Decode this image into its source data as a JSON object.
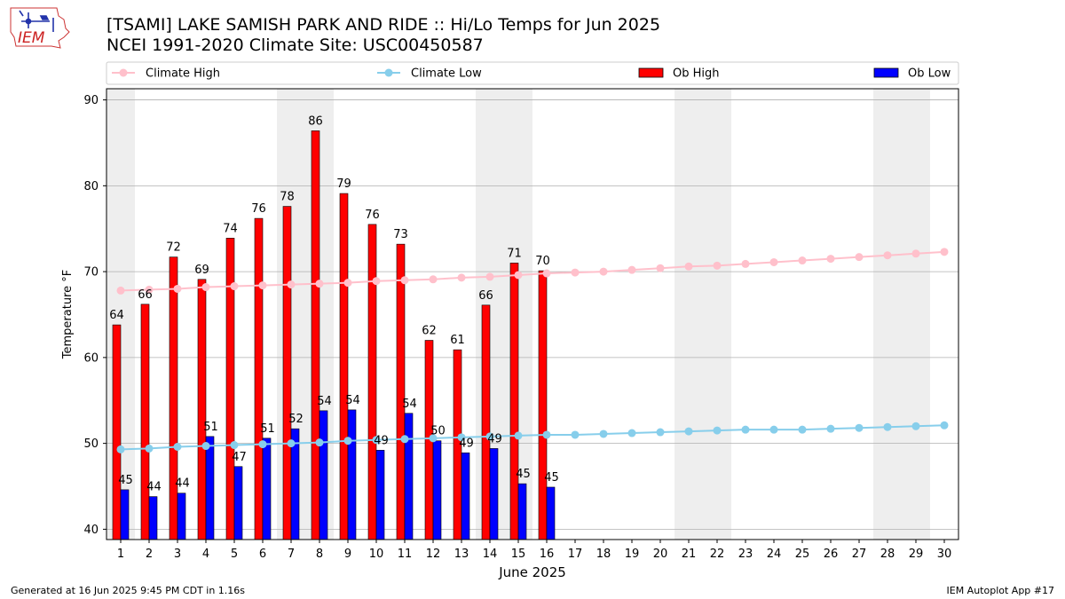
{
  "header": {
    "title_line1": "[TSAMI] LAKE SAMISH PARK AND RIDE :: Hi/Lo Temps for Jun 2025",
    "title_line2": "NCEI 1991-2020 Climate Site: USC00450587",
    "logo_text": "IEM"
  },
  "footer": {
    "generated": "Generated at 16 Jun 2025 9:45 PM CDT in 1.16s",
    "app": "IEM Autoplot App #17"
  },
  "colors": {
    "ob_high": "#ff0000",
    "ob_low": "#0000ff",
    "climate_high": "#ffc0cb",
    "climate_low": "#87ceeb",
    "weekend_band": "#eeeeee",
    "grid": "#b0b0b0"
  },
  "chart_data": {
    "type": "bar",
    "title": "[TSAMI] LAKE SAMISH PARK AND RIDE :: Hi/Lo Temps for Jun 2025",
    "xlabel": "June 2025",
    "ylabel": "Temperature °F",
    "ylim": [
      38.8,
      91.3
    ],
    "yticks": [
      40,
      50,
      60,
      70,
      80,
      90
    ],
    "grid": true,
    "legend_position": "top",
    "days": [
      1,
      2,
      3,
      4,
      5,
      6,
      7,
      8,
      9,
      10,
      11,
      12,
      13,
      14,
      15,
      16,
      17,
      18,
      19,
      20,
      21,
      22,
      23,
      24,
      25,
      26,
      27,
      28,
      29,
      30
    ],
    "weekend_days": [
      1,
      7,
      8,
      14,
      15,
      21,
      22,
      28,
      29
    ],
    "series": [
      {
        "name": "Climate High",
        "kind": "line",
        "values": [
          67.8,
          67.9,
          68.0,
          68.2,
          68.3,
          68.4,
          68.5,
          68.6,
          68.7,
          68.9,
          69.0,
          69.1,
          69.3,
          69.4,
          69.6,
          69.8,
          69.9,
          70.0,
          70.2,
          70.4,
          70.6,
          70.7,
          70.9,
          71.1,
          71.3,
          71.5,
          71.7,
          71.9,
          72.1,
          72.3
        ]
      },
      {
        "name": "Climate Low",
        "kind": "line",
        "values": [
          49.3,
          49.4,
          49.6,
          49.7,
          49.8,
          49.9,
          50.0,
          50.1,
          50.3,
          50.4,
          50.5,
          50.6,
          50.7,
          50.8,
          50.9,
          51.0,
          51.0,
          51.1,
          51.2,
          51.3,
          51.4,
          51.5,
          51.6,
          51.6,
          51.6,
          51.7,
          51.8,
          51.9,
          52.0,
          52.1
        ]
      },
      {
        "name": "Ob High",
        "kind": "bar",
        "values": [
          63.8,
          66.2,
          71.7,
          69.1,
          73.9,
          76.2,
          77.6,
          86.4,
          79.1,
          75.5,
          73.2,
          62.0,
          60.9,
          66.1,
          71.0,
          70.1
        ],
        "labels": [
          "64",
          "66",
          "72",
          "69",
          "74",
          "76",
          "78",
          "86",
          "79",
          "76",
          "73",
          "62",
          "61",
          "66",
          "71",
          "70"
        ]
      },
      {
        "name": "Ob Low",
        "kind": "bar",
        "values": [
          44.6,
          43.8,
          44.2,
          50.8,
          47.3,
          50.6,
          51.7,
          53.8,
          53.9,
          49.2,
          53.5,
          50.3,
          48.9,
          49.4,
          45.3,
          44.9
        ],
        "labels": [
          "45",
          "44",
          "44",
          "51",
          "47",
          "51",
          "52",
          "54",
          "54",
          "49",
          "54",
          "50",
          "49",
          "49",
          "45",
          "45"
        ]
      }
    ]
  }
}
